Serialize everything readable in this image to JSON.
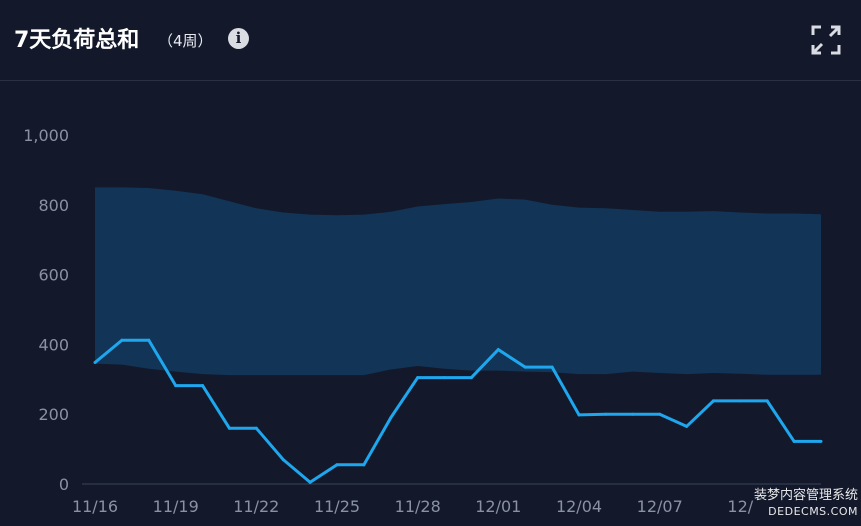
{
  "header": {
    "title": "7天负荷总和",
    "subtitle": "（4周）",
    "info_icon": "info-icon",
    "expand_icon": "expand-icon"
  },
  "chart_data": {
    "type": "line",
    "title": "7天负荷总和",
    "subtitle": "（4周）",
    "xlabel": "",
    "ylabel": "",
    "ylim": [
      0,
      1000
    ],
    "y_ticks": [
      0,
      200,
      400,
      600,
      800,
      1000
    ],
    "y_tick_labels": [
      "0",
      "200",
      "400",
      "600",
      "800",
      "1,000"
    ],
    "x": [
      "11/16",
      "11/17",
      "11/18",
      "11/19",
      "11/20",
      "11/21",
      "11/22",
      "11/23",
      "11/24",
      "11/25",
      "11/26",
      "11/27",
      "11/28",
      "11/29",
      "11/30",
      "12/01",
      "12/02",
      "12/03",
      "12/04",
      "12/05",
      "12/06",
      "12/07",
      "12/08",
      "12/09",
      "12/10",
      "12/11",
      "12/12",
      "12/13"
    ],
    "x_tick_labels": [
      "11/16",
      "11/19",
      "11/22",
      "11/25",
      "11/28",
      "12/01",
      "12/04",
      "12/07",
      "12/"
    ],
    "grid": false,
    "legend": "none",
    "band": {
      "upper": [
        850,
        850,
        848,
        840,
        830,
        810,
        790,
        778,
        772,
        770,
        772,
        780,
        795,
        802,
        808,
        818,
        815,
        800,
        792,
        790,
        785,
        780,
        780,
        782,
        778,
        775,
        775,
        773
      ],
      "lower": [
        345,
        342,
        330,
        322,
        315,
        312,
        312,
        312,
        312,
        312,
        312,
        328,
        338,
        330,
        325,
        325,
        322,
        320,
        315,
        315,
        322,
        318,
        315,
        318,
        316,
        313,
        313,
        313
      ],
      "color": "#123456"
    },
    "series": [
      {
        "values": [
          348,
          412,
          412,
          282,
          282,
          160,
          160,
          70,
          5,
          55,
          55,
          190,
          305,
          305,
          305,
          385,
          335,
          335,
          198,
          200,
          200,
          200,
          165,
          238,
          238,
          238,
          122,
          122
        ],
        "color": "#1ea7ee"
      }
    ]
  },
  "watermark": {
    "line1": "装梦内容管理系统",
    "line2": "DEDECMS.COM"
  }
}
